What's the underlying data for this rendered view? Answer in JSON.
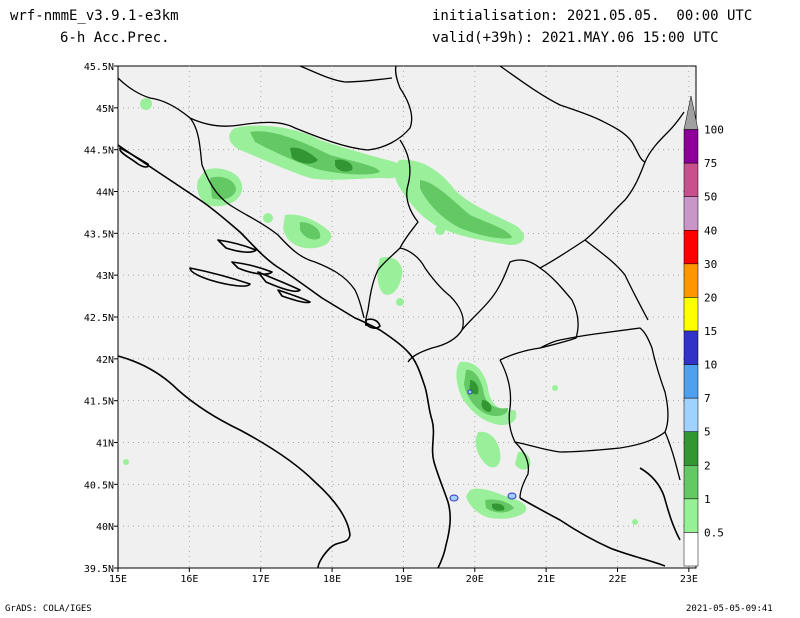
{
  "header": {
    "model": "wrf-nmmE_v3.9.1-e3km",
    "field": "6-h Acc.Prec.",
    "init": "initialisation: 2021.05.05.  00:00 UTC",
    "valid": "valid(+39h): 2021.MAY.06 15:00 UTC"
  },
  "map": {
    "lat_labels": [
      "45.5N",
      "45N",
      "44.5N",
      "44N",
      "43.5N",
      "43N",
      "42.5N",
      "42N",
      "41.5N",
      "41N",
      "40.5N",
      "40N",
      "39.5N"
    ],
    "lon_labels": [
      "15E",
      "16E",
      "17E",
      "18E",
      "19E",
      "20E",
      "21E",
      "22E",
      "23E"
    ],
    "extent": {
      "lon": [
        15,
        23.1
      ],
      "lat": [
        39.5,
        45.5
      ]
    },
    "land_color": "#f0f0f0"
  },
  "legend": {
    "labels": [
      "100",
      "75",
      "50",
      "40",
      "30",
      "20",
      "15",
      "10",
      "7",
      "5",
      "2",
      "1",
      "0.5"
    ],
    "colors": [
      "#a0a0a0",
      "#8c0099",
      "#c8508c",
      "#c896c8",
      "#ff0000",
      "#ff9600",
      "#ffff00",
      "#3232c8",
      "#50a0f0",
      "#a0d2ff",
      "#329632",
      "#64c864",
      "#96f096",
      "#ffffff"
    ]
  },
  "footer": {
    "left": "GrADS: COLA/IGES",
    "right": "2021-05-05-09:41"
  }
}
